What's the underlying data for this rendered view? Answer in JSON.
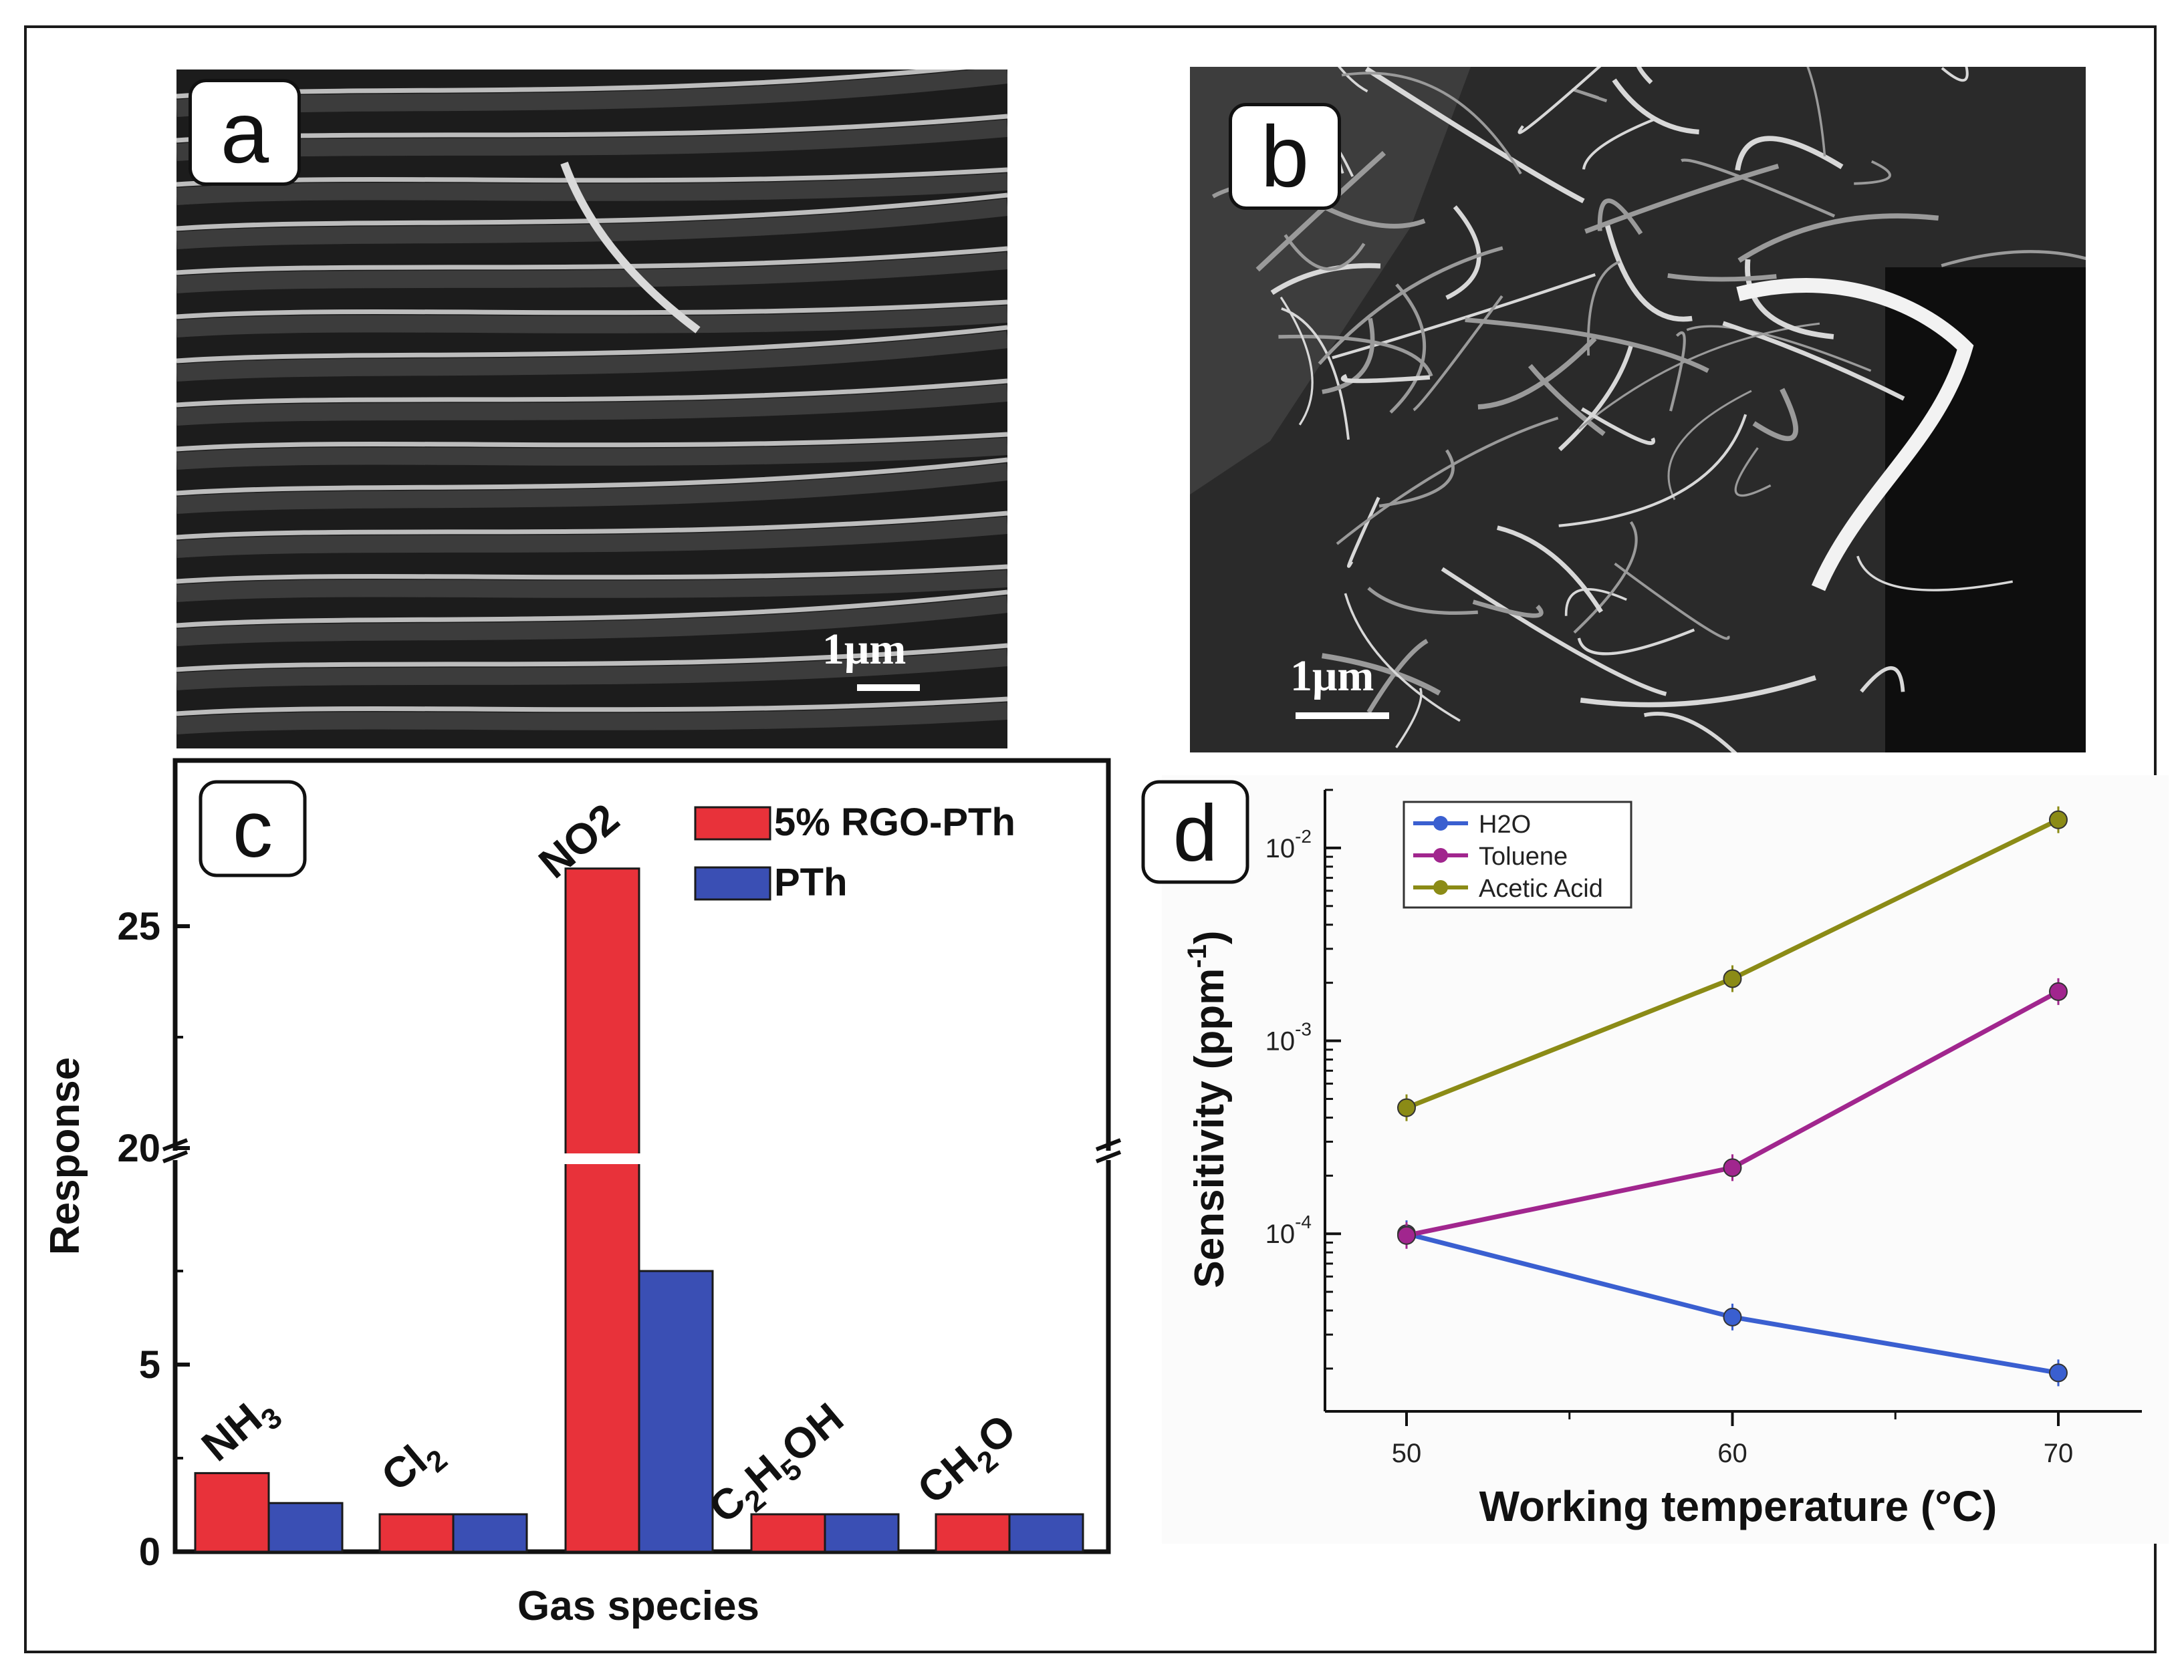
{
  "panels": {
    "a": {
      "label": "a",
      "image_kind": "SEM micrograph of layered sheets",
      "scale_bar": "1μm"
    },
    "b": {
      "label": "b",
      "image_kind": "SEM micrograph of fibrous network",
      "scale_bar": "1μm"
    }
  },
  "chart_data": [
    {
      "panel": "c",
      "type": "bar",
      "label": "c",
      "xlabel": "Gas species",
      "ylabel": "Response",
      "axis_break": true,
      "ticks": [
        "0",
        "5",
        "20",
        "25"
      ],
      "categories": [
        "NH3",
        "Cl2",
        "NO2",
        "C2H5OH",
        "CH2O"
      ],
      "category_labels": [
        {
          "parts": [
            [
              "NH",
              "n"
            ],
            [
              "3",
              "sub"
            ]
          ]
        },
        {
          "parts": [
            [
              "Cl",
              "n"
            ],
            [
              "2",
              "sub"
            ]
          ]
        },
        {
          "parts": [
            [
              "NO2",
              "n"
            ]
          ]
        },
        {
          "parts": [
            [
              "C",
              "n"
            ],
            [
              "2",
              "sub"
            ],
            [
              "H",
              "n"
            ],
            [
              "5",
              "sub"
            ],
            [
              "OH",
              "n"
            ]
          ]
        },
        {
          "parts": [
            [
              "CH",
              "n"
            ],
            [
              "2",
              "sub"
            ],
            [
              "O",
              "n"
            ]
          ]
        }
      ],
      "series": [
        {
          "name": "5% RGO-PTh",
          "color": "#e8323a",
          "values": [
            2.1,
            1.0,
            26.3,
            1.0,
            1.0
          ]
        },
        {
          "name": "PTh",
          "color": "#3a4fb4",
          "values": [
            1.3,
            1.0,
            7.5,
            1.0,
            1.0
          ]
        }
      ],
      "legend": "top-right"
    },
    {
      "panel": "d",
      "type": "line",
      "label": "d",
      "xlabel": "Working temperature (°C)",
      "ylabel": "Sensitivity (ppm",
      "ylabel_sup": "-1",
      "ylabel_close": ")",
      "yscale": "log",
      "x": [
        50,
        60,
        70
      ],
      "x_ticks": [
        "50",
        "60",
        "70"
      ],
      "y_ticks": [
        {
          "base": "10",
          "exp": "-4",
          "value": 0.0001
        },
        {
          "base": "10",
          "exp": "-3",
          "value": 0.001
        },
        {
          "base": "10",
          "exp": "-2",
          "value": 0.01
        }
      ],
      "ylim": [
        1.2e-05,
        0.02
      ],
      "series": [
        {
          "name": "H2O",
          "color": "#3a5fd0",
          "values": [
            0.0001,
            3.7e-05,
            1.9e-05
          ]
        },
        {
          "name": "Toluene",
          "color": "#a1268e",
          "values": [
            9.8e-05,
            0.00022,
            0.0018
          ]
        },
        {
          "name": "Acetic Acid",
          "color": "#8b8b16",
          "values": [
            0.00045,
            0.0021,
            0.014
          ]
        }
      ],
      "legend": "top-left",
      "grid": false
    }
  ]
}
